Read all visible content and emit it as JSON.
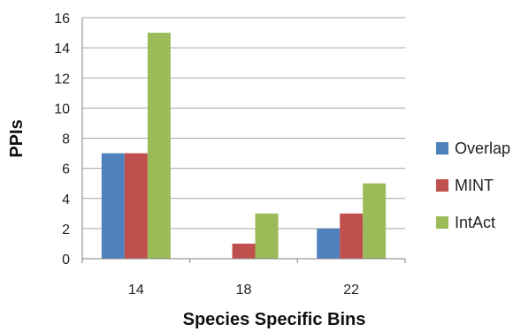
{
  "chart_data": {
    "type": "bar",
    "title": "",
    "xlabel": "Species Specific Bins",
    "ylabel": "PPIs",
    "categories": [
      "14",
      "18",
      "22"
    ],
    "series": [
      {
        "name": "Overlap",
        "values": [
          7,
          0,
          2
        ],
        "color": "#4F81BD"
      },
      {
        "name": "MINT",
        "values": [
          7,
          1,
          3
        ],
        "color": "#C0504D"
      },
      {
        "name": "IntAct",
        "values": [
          15,
          3,
          5
        ],
        "color": "#9BBB59"
      }
    ],
    "ylim": [
      0,
      16
    ],
    "yticks": [
      0,
      2,
      4,
      6,
      8,
      10,
      12,
      14,
      16
    ],
    "grid": true,
    "legend_position": "right",
    "colors": {
      "grid": "#a6a6a6",
      "axis": "#808080",
      "text": "#222222"
    }
  }
}
